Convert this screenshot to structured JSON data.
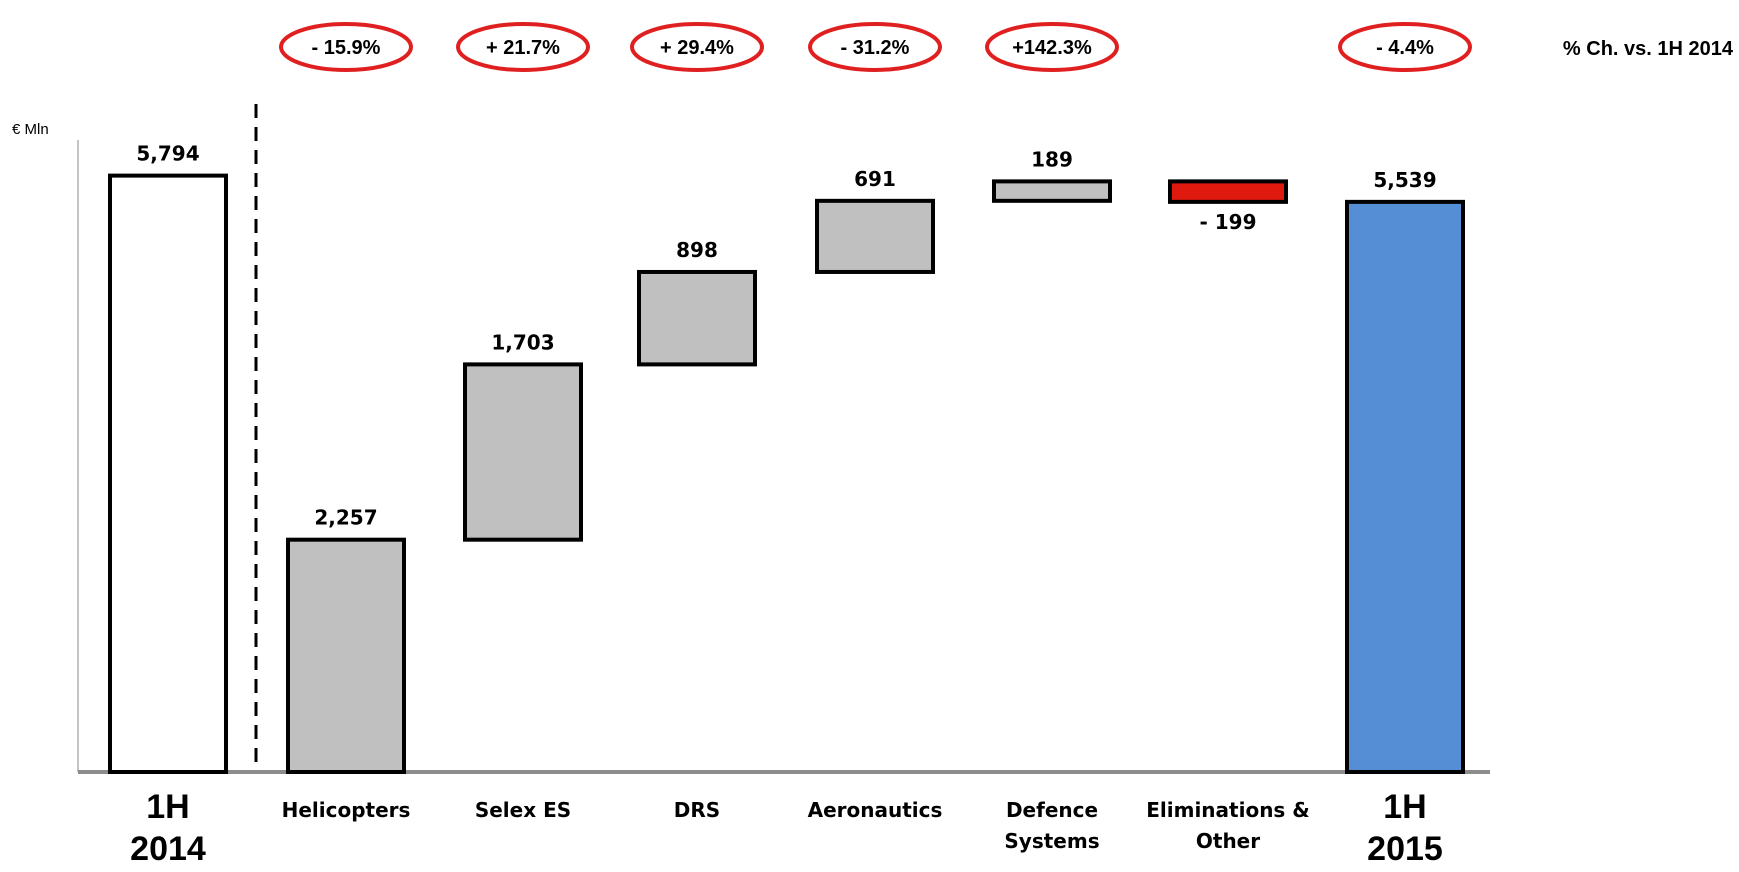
{
  "chart_data": {
    "type": "waterfall",
    "unit_label": "€ Mln",
    "pct_change_label": "% Ch. vs. 1H 2014",
    "colors": {
      "start": "#ffffff",
      "increase": "#c0c0c0",
      "decrease": "#e0190f",
      "end": "#558ed5",
      "outline": "#000000",
      "pct_ellipse": "#e02020",
      "axis": "#8c8c8c"
    },
    "bars": [
      {
        "label": [
          "1H",
          "2014"
        ],
        "value": 5794,
        "value_label": "5,794",
        "kind": "start",
        "big": true,
        "pct": null
      },
      {
        "label": [
          "Helicopters"
        ],
        "value": 2257,
        "value_label": "2,257",
        "kind": "increase",
        "big": false,
        "pct": "- 15.9%"
      },
      {
        "label": [
          "Selex ES"
        ],
        "value": 1703,
        "value_label": "1,703",
        "kind": "increase",
        "big": false,
        "pct": "+ 21.7%"
      },
      {
        "label": [
          "DRS"
        ],
        "value": 898,
        "value_label": "898",
        "kind": "increase",
        "big": false,
        "pct": "+ 29.4%"
      },
      {
        "label": [
          "Aeronautics"
        ],
        "value": 691,
        "value_label": "691",
        "kind": "increase",
        "big": false,
        "pct": "- 31.2%"
      },
      {
        "label": [
          "Defence",
          "Systems"
        ],
        "value": 189,
        "value_label": "189",
        "kind": "increase",
        "big": false,
        "pct": "+142.3%"
      },
      {
        "label": [
          "Eliminations &",
          "Other"
        ],
        "value": -199,
        "value_label": "- 199",
        "kind": "decrease",
        "big": false,
        "pct": null
      },
      {
        "label": [
          "1H",
          "2015"
        ],
        "value": 5539,
        "value_label": "5,539",
        "kind": "end",
        "big": true,
        "pct": "- 4.4%"
      }
    ],
    "ylim": [
      0,
      5800
    ]
  }
}
